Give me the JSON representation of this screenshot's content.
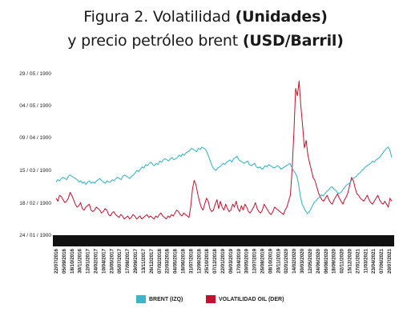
{
  "title": {
    "line1_plain": "Figura 2. Volatilidad ",
    "line1_bold": "(Unidades)",
    "line2_plain": "y precio petróleo brent ",
    "line2_bold": "(USD/Barril)"
  },
  "colors": {
    "brent": "#3fb6c8",
    "volatility": "#c0122e",
    "axis_band": "#111111"
  },
  "chart_data": {
    "type": "line",
    "y_axis_left_ticks": [
      "29 / 05 / 1900",
      "04 / 05 / 1900",
      "09 / 04 / 1900",
      "15 / 03 / 1900",
      "18 / 02 / 1900",
      "24 / 01 / 1900"
    ],
    "x_ticks": [
      "22/07/2016",
      "05/09/2016",
      "18/10/2016",
      "30/11/2016",
      "12/01/2017",
      "24/02/2017",
      "10/04/2017",
      "23/05/2017",
      "05/07/2017",
      "17/08/2017",
      "29/09/2017",
      "13/11/2017",
      "26/12/2017",
      "07/02/2018",
      "22/03/2018",
      "04/05/2018",
      "18/06/2018",
      "31/07/2018",
      "12/09/2018",
      "25/10/2018",
      "07/12/2018",
      "22/01/2019",
      "06/03/2019",
      "17/04/2019",
      "30/05/2019",
      "12/07/2019",
      "26/08/2019",
      "08/10/2019",
      "20/11/2019",
      "02/01/2020",
      "14/02/2020",
      "30/03/2020",
      "12/05/2020",
      "24/06/2020",
      "06/08/2020",
      "18/09/2020",
      "02/11/2020",
      "15/12/2020",
      "27/01/2021",
      "11/03/2021",
      "23/04/2021",
      "07/06/2021",
      "20/07/2021"
    ],
    "series": [
      {
        "name": "BRENT (IZQ)",
        "key": "brent",
        "values": [
          47,
          49,
          48,
          50,
          51,
          50,
          49,
          52,
          53,
          52,
          51,
          50,
          49,
          47,
          48,
          46,
          47,
          45,
          47,
          48,
          46,
          47,
          46,
          48,
          49,
          50,
          48,
          47,
          46,
          48,
          47,
          47,
          49,
          48,
          50,
          51,
          50,
          49,
          52,
          53,
          52,
          51,
          50,
          52,
          53,
          55,
          57,
          56,
          58,
          60,
          59,
          62,
          61,
          63,
          64,
          62,
          61,
          63,
          62,
          65,
          64,
          66,
          67,
          66,
          65,
          67,
          68,
          66,
          67,
          68,
          70,
          69,
          71,
          70,
          72,
          73,
          74,
          76,
          75,
          74,
          73,
          76,
          75,
          77,
          76,
          75,
          72,
          68,
          64,
          60,
          58,
          57,
          59,
          60,
          61,
          63,
          62,
          64,
          65,
          66,
          64,
          67,
          68,
          69,
          66,
          65,
          64,
          63,
          64,
          65,
          62,
          61,
          62,
          63,
          60,
          59,
          60,
          58,
          59,
          61,
          60,
          62,
          61,
          60,
          59,
          60,
          61,
          60,
          58,
          59,
          60,
          61,
          62,
          63,
          60,
          57,
          55,
          52,
          45,
          35,
          28,
          25,
          22,
          20,
          21,
          24,
          27,
          30,
          31,
          33,
          34,
          36,
          35,
          37,
          39,
          40,
          42,
          43,
          41,
          40,
          38,
          37,
          38,
          40,
          42,
          44,
          45,
          46,
          48,
          50,
          51,
          52,
          54,
          55,
          57,
          58,
          60,
          61,
          62,
          63,
          65,
          64,
          66,
          67,
          68,
          70,
          72,
          74,
          76,
          77,
          74,
          68
        ],
        "line_width": 1.1
      },
      {
        "name": "VOLATILIDAD OIL (DER)",
        "key": "volatility",
        "values": [
          26,
          24,
          28,
          27,
          25,
          23,
          24,
          26,
          30,
          28,
          25,
          22,
          20,
          21,
          23,
          19,
          18,
          20,
          21,
          22,
          18,
          17,
          18,
          20,
          19,
          18,
          16,
          17,
          19,
          18,
          15,
          14,
          16,
          17,
          15,
          14,
          13,
          15,
          14,
          12,
          13,
          14,
          12,
          13,
          15,
          14,
          12,
          13,
          14,
          12,
          13,
          14,
          15,
          13,
          14,
          13,
          12,
          14,
          13,
          15,
          16,
          14,
          13,
          12,
          14,
          13,
          15,
          14,
          16,
          18,
          17,
          15,
          14,
          16,
          15,
          14,
          13,
          20,
          32,
          38,
          35,
          29,
          24,
          20,
          18,
          22,
          26,
          24,
          19,
          17,
          18,
          22,
          25,
          19,
          24,
          20,
          18,
          22,
          19,
          17,
          18,
          22,
          20,
          24,
          19,
          17,
          21,
          18,
          22,
          20,
          17,
          16,
          18,
          20,
          23,
          19,
          17,
          16,
          18,
          22,
          20,
          18,
          16,
          15,
          17,
          20,
          19,
          18,
          17,
          16,
          15,
          18,
          20,
          24,
          28,
          45,
          70,
          100,
          95,
          105,
          88,
          75,
          60,
          65,
          55,
          50,
          45,
          40,
          38,
          34,
          30,
          27,
          25,
          24,
          26,
          28,
          25,
          23,
          22,
          25,
          27,
          29,
          26,
          24,
          22,
          25,
          27,
          30,
          35,
          40,
          38,
          33,
          29,
          28,
          26,
          25,
          24,
          26,
          28,
          25,
          23,
          22,
          24,
          26,
          28,
          25,
          23,
          22,
          24,
          22,
          20,
          26,
          24
        ],
        "line_width": 1.0
      }
    ],
    "left_ylim": [
      0,
      140
    ],
    "right_ylim": [
      0,
      110
    ],
    "grid": false,
    "legend_placement": "bottom-center",
    "legend": [
      {
        "label": "BRENT (IZQ)",
        "key": "brent"
      },
      {
        "label": "VOLATILIDAD OIL (DER)",
        "key": "volatility"
      }
    ]
  }
}
